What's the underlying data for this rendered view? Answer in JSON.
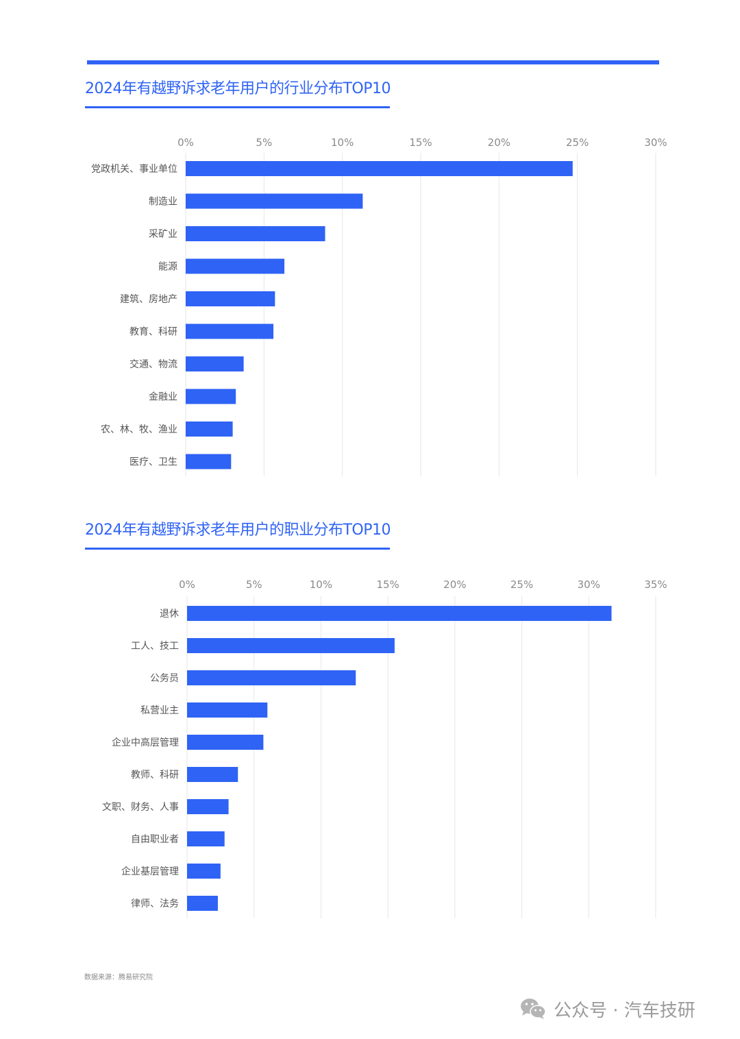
{
  "colors": {
    "accent": "#2f63f5",
    "grid": "#e6e6e6",
    "text": "#555555",
    "tick": "#8a8a8a"
  },
  "chart_data": [
    {
      "type": "bar",
      "orientation": "horizontal",
      "title": "2024年有越野诉求老年用户的行业分布TOP10",
      "categories": [
        "党政机关、事业单位",
        "制造业",
        "采矿业",
        "能源",
        "建筑、房地产",
        "教育、科研",
        "交通、物流",
        "金融业",
        "农、林、牧、渔业",
        "医疗、卫生"
      ],
      "values": [
        24.7,
        11.3,
        8.9,
        6.3,
        5.7,
        5.6,
        3.7,
        3.2,
        3.0,
        2.9
      ],
      "x_ticks": [
        "0%",
        "5%",
        "10%",
        "15%",
        "20%",
        "25%",
        "30%"
      ],
      "xlim": [
        0,
        30
      ],
      "unit": "%",
      "grid": true,
      "xaxis_position": "top"
    },
    {
      "type": "bar",
      "orientation": "horizontal",
      "title": "2024年有越野诉求老年用户的职业分布TOP10",
      "categories": [
        "退休",
        "工人、技工",
        "公务员",
        "私营业主",
        "企业中高层管理",
        "教师、科研",
        "文职、财务、人事",
        "自由职业者",
        "企业基层管理",
        "律师、法务"
      ],
      "values": [
        31.7,
        15.5,
        12.6,
        6.0,
        5.7,
        3.8,
        3.1,
        2.8,
        2.5,
        2.3
      ],
      "x_ticks": [
        "0%",
        "5%",
        "10%",
        "15%",
        "20%",
        "25%",
        "30%",
        "35%"
      ],
      "xlim": [
        0,
        35
      ],
      "unit": "%",
      "grid": true,
      "xaxis_position": "top"
    }
  ],
  "footer": {
    "source": "数据来源：腾易研究院",
    "watermark_icon": "wechat-icon",
    "watermark": "公众号 · 汽车技研"
  }
}
